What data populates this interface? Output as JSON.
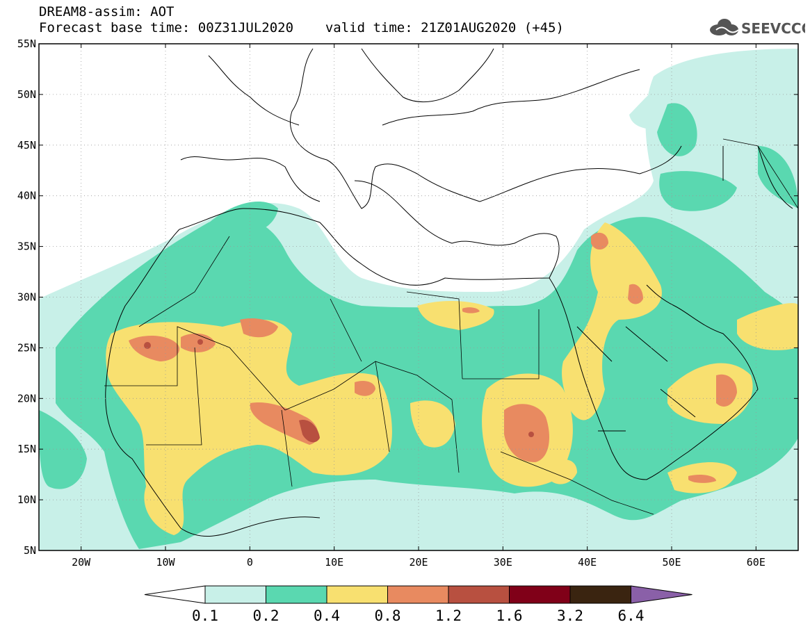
{
  "header": {
    "line1": "DREAM8-assim: AOT",
    "line2_base": "Forecast base time: 00Z31JUL2020",
    "line2_valid": "valid time: 21Z01AUG2020 (+45)"
  },
  "logo": {
    "text": "SEEVCCC",
    "icon": "cloud-icon",
    "color": "#555555"
  },
  "map": {
    "lon_range": [
      -25,
      65
    ],
    "lat_range": [
      5,
      55
    ],
    "x_ticks": [
      {
        "lon": -20,
        "label": "20W"
      },
      {
        "lon": -10,
        "label": "10W"
      },
      {
        "lon": 0,
        "label": "0"
      },
      {
        "lon": 10,
        "label": "10E"
      },
      {
        "lon": 20,
        "label": "20E"
      },
      {
        "lon": 30,
        "label": "30E"
      },
      {
        "lon": 40,
        "label": "40E"
      },
      {
        "lon": 50,
        "label": "50E"
      },
      {
        "lon": 60,
        "label": "60E"
      }
    ],
    "y_ticks": [
      {
        "lat": 5,
        "label": "5N"
      },
      {
        "lat": 10,
        "label": "10N"
      },
      {
        "lat": 15,
        "label": "15N"
      },
      {
        "lat": 20,
        "label": "20N"
      },
      {
        "lat": 25,
        "label": "25N"
      },
      {
        "lat": 30,
        "label": "30N"
      },
      {
        "lat": 35,
        "label": "35N"
      },
      {
        "lat": 40,
        "label": "40N"
      },
      {
        "lat": 45,
        "label": "45N"
      },
      {
        "lat": 50,
        "label": "50N"
      },
      {
        "lat": 55,
        "label": "55N"
      }
    ],
    "grid": true
  },
  "colorbar": {
    "labels": [
      "0.1",
      "0.2",
      "0.4",
      "0.8",
      "1.2",
      "1.6",
      "3.2",
      "6.4"
    ],
    "under_color": "#ffffff",
    "colors": [
      "#c8f0e8",
      "#5ad8b0",
      "#f8e070",
      "#e88a60",
      "#b85040",
      "#800018",
      "#3a2410"
    ],
    "over_color": "#8a60a8"
  },
  "aot_levels": {
    "0.1": "#c8f0e8",
    "0.2": "#5ad8b0",
    "0.4": "#f8e070",
    "0.8": "#e88a60",
    "1.2": "#b85040",
    "land": "#ffffff"
  }
}
